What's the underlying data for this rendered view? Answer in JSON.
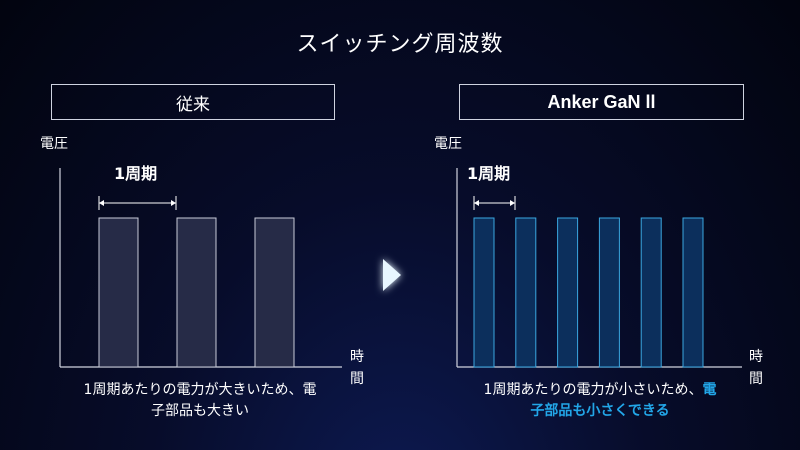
{
  "title": "スイッチング周波数",
  "left": {
    "header": "従来",
    "y_label": "電圧",
    "x_label": "時間",
    "period_label": "1周期",
    "caption_line1": "1周期あたりの電力が大きいため、電",
    "caption_line2": "子部品も大きい",
    "pulse_count": 3,
    "colors": {
      "bar_fill": "#262b47",
      "bar_stroke": "#c8cbd8"
    }
  },
  "right": {
    "header": "Anker GaN ll",
    "y_label": "電圧",
    "x_label": "時間",
    "period_label": "1周期",
    "caption_line1_plain": "1周期あたりの電力が小さいため、",
    "caption_line1_highlight": "電",
    "caption_line2_highlight": "子部品も小さくできる",
    "pulse_count": 6,
    "colors": {
      "bar_fill": "#0c2f5c",
      "bar_stroke": "#3aa7e0",
      "highlight": "#22a6e8"
    }
  },
  "arrow": {
    "color": "#e8f6ff",
    "glow": "#1e90ff"
  }
}
